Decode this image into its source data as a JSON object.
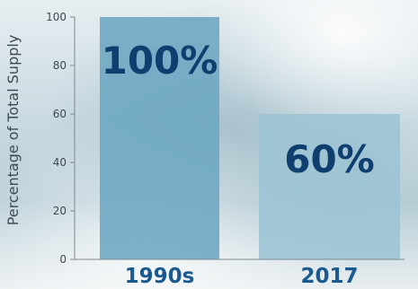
{
  "chart_data": {
    "type": "bar",
    "title": "",
    "xlabel": "",
    "ylabel": "Percentage of Total Supply",
    "categories": [
      "1990s",
      "2017"
    ],
    "values": [
      100,
      60
    ],
    "data_labels": [
      "100%",
      "60%"
    ],
    "ylim": [
      0,
      100
    ],
    "yticks": [
      0,
      20,
      40,
      60,
      80,
      100
    ],
    "ytick_labels": [
      "0",
      "20",
      "40",
      "60",
      "80",
      "100"
    ],
    "grid": false,
    "legend": "none"
  },
  "colors": {
    "bar_1990s": "#6ba6c2",
    "bar_2017": "#9cc3d4",
    "data_label": "#0f3f6e",
    "category_label": "#1a5a8f",
    "axis_text": "#3d4a52",
    "axis_line": "#7d8a90"
  }
}
